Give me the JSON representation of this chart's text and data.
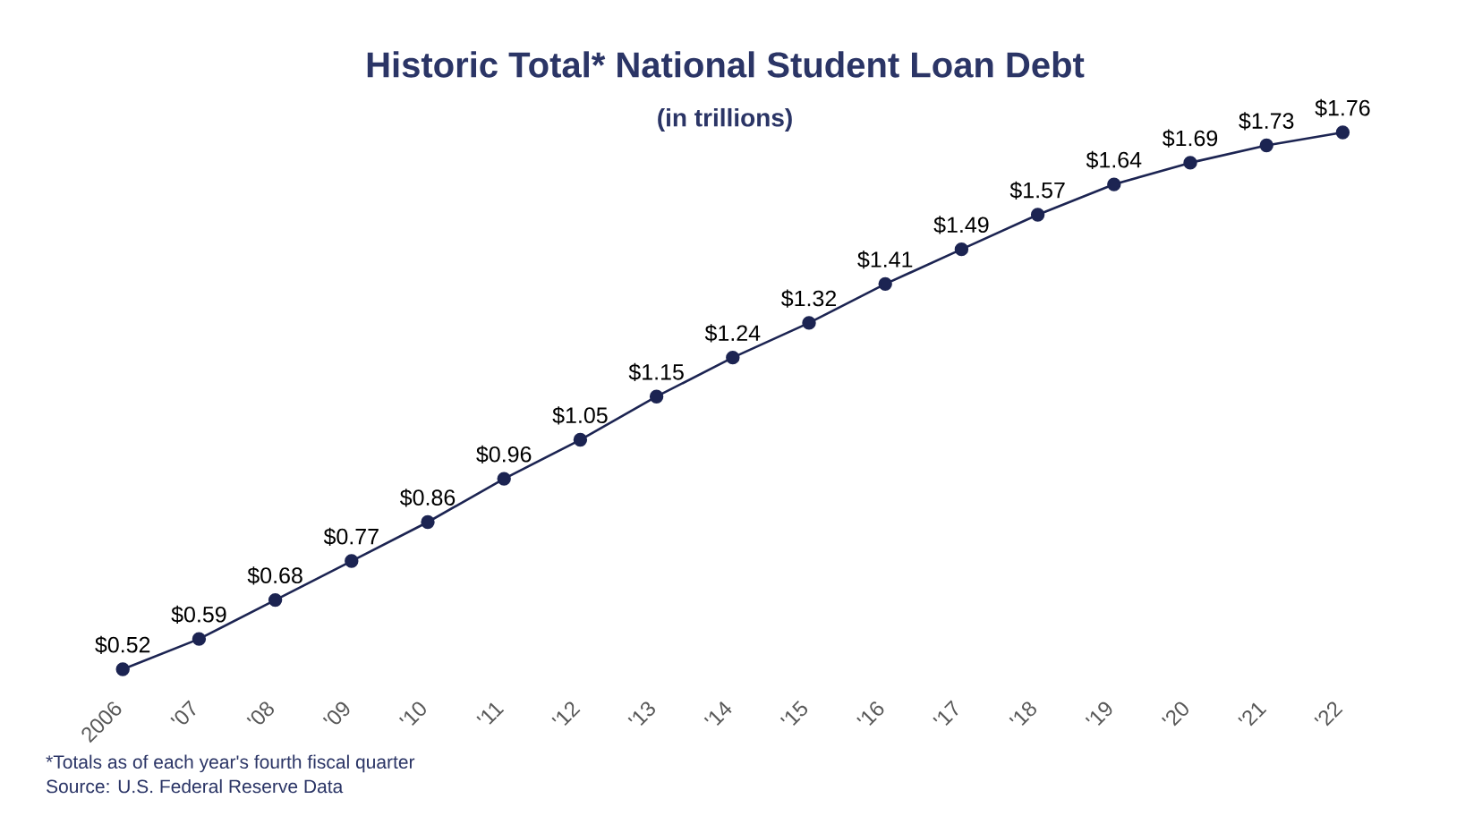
{
  "chart_data": {
    "type": "line",
    "title": "Historic Total* National Student Loan Debt",
    "subtitle": "(in trillions)",
    "categories": [
      "2006",
      "'07",
      "'08",
      "'09",
      "'10",
      "'11",
      "'12",
      "'13",
      "'14",
      "'15",
      "'16",
      "'17",
      "'18",
      "'19",
      "'20",
      "'21",
      "'22"
    ],
    "values": [
      0.52,
      0.59,
      0.68,
      0.77,
      0.86,
      0.96,
      1.05,
      1.15,
      1.24,
      1.32,
      1.41,
      1.49,
      1.57,
      1.64,
      1.69,
      1.73,
      1.76
    ],
    "value_labels": [
      "$0.52",
      "$0.59",
      "$0.68",
      "$0.77",
      "$0.86",
      "$0.96",
      "$1.05",
      "$1.15",
      "$1.24",
      "$1.32",
      "$1.41",
      "$1.49",
      "$1.57",
      "$1.64",
      "$1.69",
      "$1.73",
      "$1.76"
    ],
    "color": "#1c2452",
    "marker": "circle",
    "line_style": "solid",
    "annotations": [
      "*Totals as of each year's fourth fiscal quarter",
      "Source: U.S. Federal Reserve Data"
    ]
  }
}
